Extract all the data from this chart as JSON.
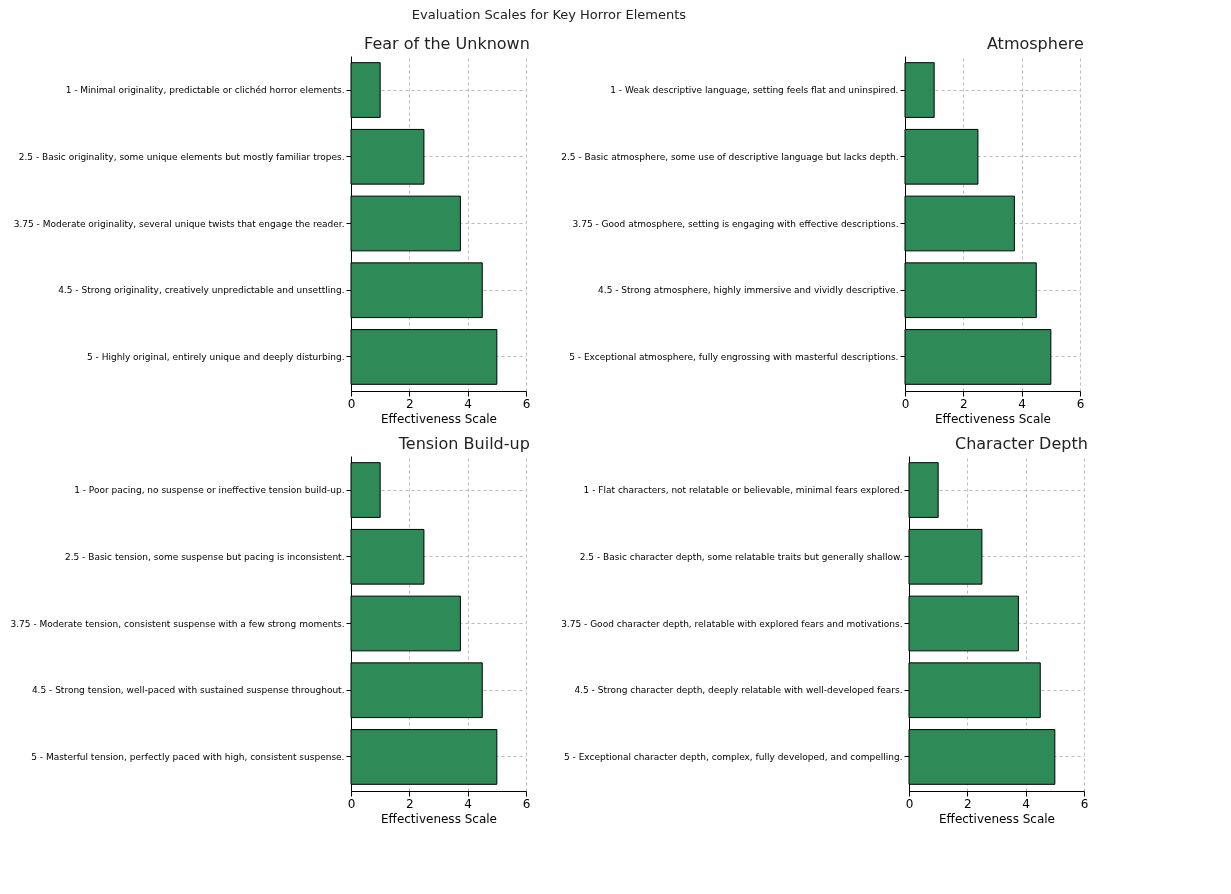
{
  "chart_data": [
    {
      "type": "bar",
      "orientation": "horizontal",
      "title": "Fear of the Unknown",
      "annotations": [
        "Evaluation Scales for Key Horror Elements"
      ],
      "xlabel": "Effectiveness Scale",
      "categories": [
        "1 - Minimal originality, predictable or clichéd horror elements.",
        "2.5 - Basic originality, some unique elements but mostly familiar tropes.",
        "3.75 - Moderate originality, several unique twists that engage the reader.",
        "4.5 - Strong originality, creatively unpredictable and unsettling.",
        "5 - Highly original, entirely unique and deeply disturbing."
      ],
      "values": [
        1,
        2.5,
        3.75,
        4.5,
        5
      ],
      "color": "#2e8b57",
      "xlim": [
        0,
        6
      ],
      "xticks": [
        0,
        2,
        4,
        6
      ],
      "grid": true
    },
    {
      "type": "bar",
      "orientation": "horizontal",
      "title": "Atmosphere",
      "xlabel": "Effectiveness Scale",
      "categories": [
        "1 - Weak descriptive language, setting feels flat and uninspired.",
        "2.5 - Basic atmosphere, some use of descriptive language but lacks depth.",
        "3.75 - Good atmosphere, setting is engaging with effective descriptions.",
        "4.5 - Strong atmosphere, highly immersive and vividly descriptive.",
        "5 - Exceptional atmosphere, fully engrossing with masterful descriptions."
      ],
      "values": [
        1,
        2.5,
        3.75,
        4.5,
        5
      ],
      "color": "#2e8b57",
      "xlim": [
        0,
        6
      ],
      "xticks": [
        0,
        2,
        4,
        6
      ],
      "grid": true
    },
    {
      "type": "bar",
      "orientation": "horizontal",
      "title": "Tension Build-up",
      "xlabel": "Effectiveness Scale",
      "categories": [
        "1 - Poor pacing, no suspense or ineffective tension build-up.",
        "2.5 - Basic tension, some suspense but pacing is inconsistent.",
        "3.75 - Moderate tension, consistent suspense with a few strong moments.",
        "4.5 - Strong tension, well-paced with sustained suspense throughout.",
        "5 - Masterful tension, perfectly paced with high, consistent suspense."
      ],
      "values": [
        1,
        2.5,
        3.75,
        4.5,
        5
      ],
      "color": "#2e8b57",
      "xlim": [
        0,
        6
      ],
      "xticks": [
        0,
        2,
        4,
        6
      ],
      "grid": true
    },
    {
      "type": "bar",
      "orientation": "horizontal",
      "title": "Character Depth",
      "xlabel": "Effectiveness Scale",
      "categories": [
        "1 - Flat characters, not relatable or believable, minimal fears explored.",
        "2.5 - Basic character depth, some relatable traits but generally shallow.",
        "3.75 - Good character depth, relatable with explored fears and motivations.",
        "4.5 - Strong character depth, deeply relatable with well-developed fears.",
        "5 - Exceptional character depth, complex, fully developed, and compelling."
      ],
      "values": [
        1,
        2.5,
        3.75,
        4.5,
        5
      ],
      "color": "#2e8b57",
      "xlim": [
        0,
        6
      ],
      "xticks": [
        0,
        2,
        4,
        6
      ],
      "grid": true
    }
  ]
}
